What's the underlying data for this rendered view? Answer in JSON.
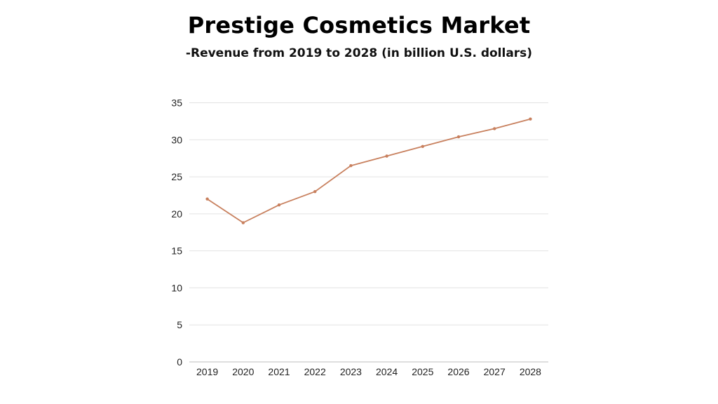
{
  "title": "Prestige Cosmetics  Market",
  "subtitle": "-Revenue from 2019 to 2028 (in billion U.S. dollars)",
  "colors": {
    "line": "#c8805e",
    "grid": "#e3e3e3",
    "axis": "#bdbdbd"
  },
  "chart_data": {
    "type": "line",
    "categories": [
      "2019",
      "2020",
      "2021",
      "2022",
      "2023",
      "2024",
      "2025",
      "2026",
      "2027",
      "2028"
    ],
    "series": [
      {
        "values": [
          22.0,
          18.8,
          21.2,
          23.0,
          26.5,
          27.8,
          29.1,
          30.4,
          31.5,
          32.8
        ]
      }
    ],
    "ylim": [
      0,
      35
    ],
    "yticks": [
      "0",
      "5",
      "10",
      "15",
      "20",
      "25",
      "30",
      "35"
    ],
    "grid": true,
    "legend": "none"
  }
}
